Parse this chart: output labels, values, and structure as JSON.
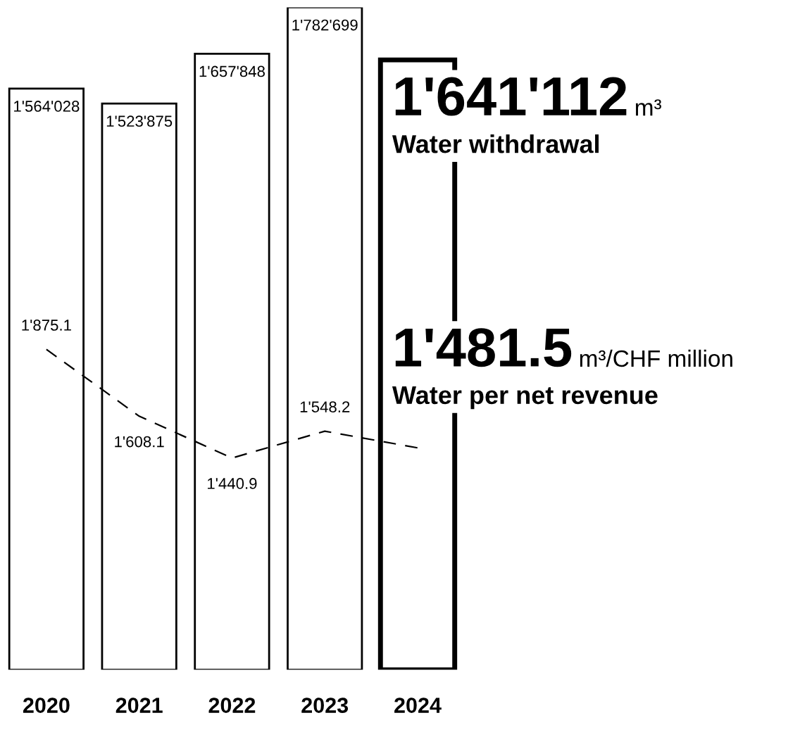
{
  "chart_data": {
    "type": "bar",
    "categories": [
      "2020",
      "2021",
      "2022",
      "2023",
      "2024"
    ],
    "series": [
      {
        "color": "#ffffff",
        "values": [
          1564028,
          1523875,
          1657848,
          1782699,
          1641112
        ],
        "value_labels": [
          "1'564'028",
          "1'523'875",
          "1'657'848",
          "1'782'699",
          null
        ]
      },
      {
        "type": "line",
        "axis": "y2",
        "color": "#000000",
        "line_style": "dashed",
        "values": [
          1875.1,
          1608.1,
          1440.9,
          1548.2,
          1481.5
        ],
        "value_labels": [
          "1'875.1",
          "1'608.1",
          "1'440.9",
          "1'548.2",
          null
        ]
      }
    ],
    "annotations": [
      "1'641'112 m³",
      "Water withdrawal",
      "1'481.5 m³/CHF million",
      "Water per net revenue"
    ],
    "grid": false,
    "legend": false
  }
}
